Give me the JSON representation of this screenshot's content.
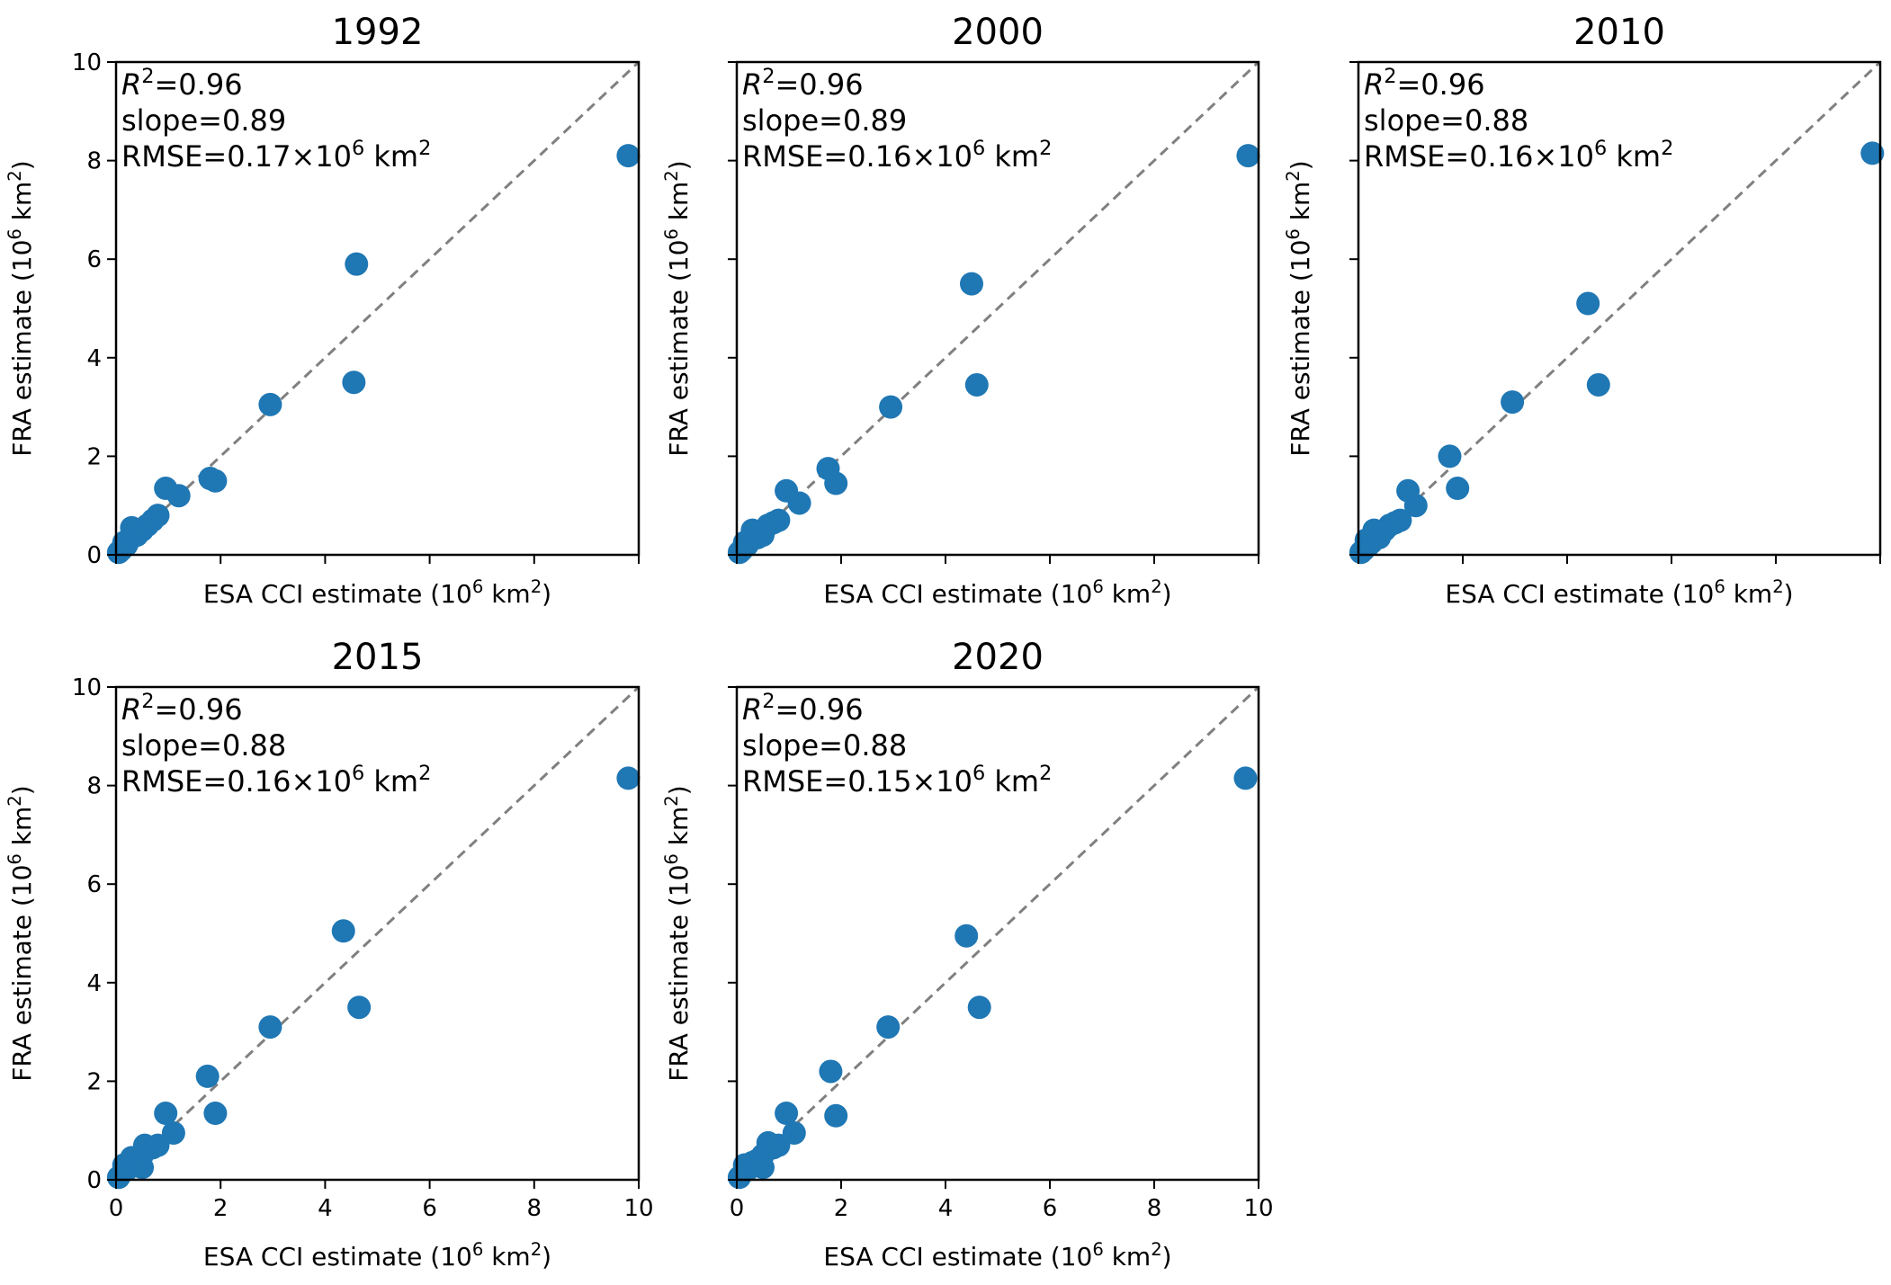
{
  "chart_data": [
    {
      "type": "scatter",
      "title": "1992",
      "xlabel": "ESA CCI estimate (10⁶ km²)",
      "ylabel": "FRA estimate (10⁶ km²)",
      "xlim": [
        0,
        10
      ],
      "ylim": [
        0,
        10
      ],
      "x_ticks": [
        0,
        2,
        4,
        6,
        8,
        10
      ],
      "y_ticks": [
        0,
        2,
        4,
        6,
        8,
        10
      ],
      "x_ticklabels_visible": false,
      "y_ticklabels_visible": true,
      "annotations": [
        "R²=0.96",
        "slope=0.89",
        "RMSE=0.17×10⁶ km²"
      ],
      "reference_line": {
        "style": "dashed",
        "color": "#808080",
        "from": [
          0,
          0
        ],
        "to": [
          10,
          10
        ]
      },
      "marker_color": "#1f77b4",
      "points": [
        [
          9.8,
          8.1
        ],
        [
          4.6,
          5.9
        ],
        [
          4.55,
          3.5
        ],
        [
          2.95,
          3.05
        ],
        [
          1.9,
          1.5
        ],
        [
          1.8,
          1.55
        ],
        [
          1.2,
          1.2
        ],
        [
          0.95,
          1.35
        ],
        [
          0.8,
          0.8
        ],
        [
          0.7,
          0.7
        ],
        [
          0.6,
          0.6
        ],
        [
          0.5,
          0.5
        ],
        [
          0.4,
          0.4
        ],
        [
          0.3,
          0.55
        ],
        [
          0.25,
          0.3
        ],
        [
          0.2,
          0.2
        ],
        [
          0.15,
          0.25
        ],
        [
          0.1,
          0.1
        ],
        [
          0.05,
          0.05
        ]
      ]
    },
    {
      "type": "scatter",
      "title": "2000",
      "xlabel": "ESA CCI estimate (10⁶ km²)",
      "ylabel": "FRA estimate (10⁶ km²)",
      "xlim": [
        0,
        10
      ],
      "ylim": [
        0,
        10
      ],
      "x_ticks": [
        0,
        2,
        4,
        6,
        8,
        10
      ],
      "y_ticks": [
        0,
        2,
        4,
        6,
        8,
        10
      ],
      "x_ticklabels_visible": false,
      "y_ticklabels_visible": false,
      "annotations": [
        "R²=0.96",
        "slope=0.89",
        "RMSE=0.16×10⁶ km²"
      ],
      "reference_line": {
        "style": "dashed",
        "color": "#808080",
        "from": [
          0,
          0
        ],
        "to": [
          10,
          10
        ]
      },
      "marker_color": "#1f77b4",
      "points": [
        [
          9.8,
          8.1
        ],
        [
          4.5,
          5.5
        ],
        [
          4.6,
          3.45
        ],
        [
          2.95,
          3.0
        ],
        [
          1.75,
          1.75
        ],
        [
          1.9,
          1.45
        ],
        [
          1.2,
          1.05
        ],
        [
          0.95,
          1.3
        ],
        [
          0.8,
          0.7
        ],
        [
          0.7,
          0.65
        ],
        [
          0.6,
          0.6
        ],
        [
          0.5,
          0.4
        ],
        [
          0.4,
          0.35
        ],
        [
          0.3,
          0.5
        ],
        [
          0.25,
          0.3
        ],
        [
          0.2,
          0.2
        ],
        [
          0.15,
          0.25
        ],
        [
          0.1,
          0.1
        ],
        [
          0.05,
          0.05
        ]
      ]
    },
    {
      "type": "scatter",
      "title": "2010",
      "xlabel": "ESA CCI estimate (10⁶ km²)",
      "ylabel": "FRA estimate (10⁶ km²)",
      "xlim": [
        0,
        10
      ],
      "ylim": [
        0,
        10
      ],
      "x_ticks": [
        0,
        2,
        4,
        6,
        8,
        10
      ],
      "y_ticks": [
        0,
        2,
        4,
        6,
        8,
        10
      ],
      "x_ticklabels_visible": false,
      "y_ticklabels_visible": false,
      "annotations": [
        "R²=0.96",
        "slope=0.88",
        "RMSE=0.16×10⁶ km²"
      ],
      "reference_line": {
        "style": "dashed",
        "color": "#808080",
        "from": [
          0,
          0
        ],
        "to": [
          10,
          10
        ]
      },
      "marker_color": "#1f77b4",
      "points": [
        [
          9.85,
          8.15
        ],
        [
          4.4,
          5.1
        ],
        [
          4.6,
          3.45
        ],
        [
          2.95,
          3.1
        ],
        [
          1.75,
          2.0
        ],
        [
          1.9,
          1.35
        ],
        [
          1.1,
          1.0
        ],
        [
          0.95,
          1.3
        ],
        [
          0.8,
          0.7
        ],
        [
          0.7,
          0.65
        ],
        [
          0.6,
          0.6
        ],
        [
          0.5,
          0.5
        ],
        [
          0.4,
          0.35
        ],
        [
          0.3,
          0.5
        ],
        [
          0.25,
          0.25
        ],
        [
          0.2,
          0.2
        ],
        [
          0.15,
          0.3
        ],
        [
          0.1,
          0.1
        ],
        [
          0.05,
          0.05
        ]
      ]
    },
    {
      "type": "scatter",
      "title": "2015",
      "xlabel": "ESA CCI estimate (10⁶ km²)",
      "ylabel": "FRA estimate (10⁶ km²)",
      "xlim": [
        0,
        10
      ],
      "ylim": [
        0,
        10
      ],
      "x_ticks": [
        0,
        2,
        4,
        6,
        8,
        10
      ],
      "y_ticks": [
        0,
        2,
        4,
        6,
        8,
        10
      ],
      "x_ticklabels_visible": true,
      "y_ticklabels_visible": true,
      "annotations": [
        "R²=0.96",
        "slope=0.88",
        "RMSE=0.16×10⁶ km²"
      ],
      "reference_line": {
        "style": "dashed",
        "color": "#808080",
        "from": [
          0,
          0
        ],
        "to": [
          10,
          10
        ]
      },
      "marker_color": "#1f77b4",
      "points": [
        [
          9.8,
          8.15
        ],
        [
          4.35,
          5.05
        ],
        [
          4.65,
          3.5
        ],
        [
          2.95,
          3.1
        ],
        [
          1.75,
          2.1
        ],
        [
          1.9,
          1.35
        ],
        [
          1.1,
          0.95
        ],
        [
          0.95,
          1.35
        ],
        [
          0.8,
          0.7
        ],
        [
          0.7,
          0.65
        ],
        [
          0.55,
          0.7
        ],
        [
          0.5,
          0.5
        ],
        [
          0.4,
          0.35
        ],
        [
          0.3,
          0.45
        ],
        [
          0.25,
          0.25
        ],
        [
          0.2,
          0.2
        ],
        [
          0.15,
          0.3
        ],
        [
          0.5,
          0.25
        ],
        [
          0.05,
          0.05
        ]
      ]
    },
    {
      "type": "scatter",
      "title": "2020",
      "xlabel": "ESA CCI estimate (10⁶ km²)",
      "ylabel": "FRA estimate (10⁶ km²)",
      "xlim": [
        0,
        10
      ],
      "ylim": [
        0,
        10
      ],
      "x_ticks": [
        0,
        2,
        4,
        6,
        8,
        10
      ],
      "y_ticks": [
        0,
        2,
        4,
        6,
        8,
        10
      ],
      "x_ticklabels_visible": true,
      "y_ticklabels_visible": false,
      "annotations": [
        "R²=0.96",
        "slope=0.88",
        "RMSE=0.15×10⁶ km²"
      ],
      "reference_line": {
        "style": "dashed",
        "color": "#808080",
        "from": [
          0,
          0
        ],
        "to": [
          10,
          10
        ]
      },
      "marker_color": "#1f77b4",
      "points": [
        [
          9.75,
          8.15
        ],
        [
          4.4,
          4.95
        ],
        [
          4.65,
          3.5
        ],
        [
          2.9,
          3.1
        ],
        [
          1.8,
          2.2
        ],
        [
          1.9,
          1.3
        ],
        [
          1.1,
          0.95
        ],
        [
          0.95,
          1.35
        ],
        [
          0.8,
          0.7
        ],
        [
          0.7,
          0.65
        ],
        [
          0.6,
          0.75
        ],
        [
          0.5,
          0.5
        ],
        [
          0.4,
          0.4
        ],
        [
          0.3,
          0.35
        ],
        [
          0.25,
          0.25
        ],
        [
          0.2,
          0.2
        ],
        [
          0.15,
          0.3
        ],
        [
          0.5,
          0.25
        ],
        [
          0.05,
          0.05
        ]
      ]
    }
  ]
}
